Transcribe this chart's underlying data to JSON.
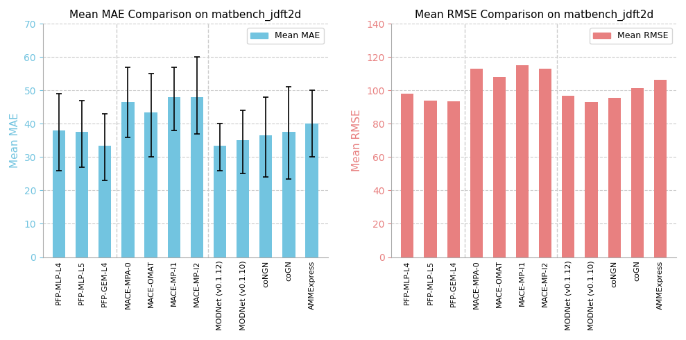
{
  "categories": [
    "PFP-MLP-L4",
    "PFP-MLP-L5",
    "PFP-GEM-L4",
    "MACE-MPA-0",
    "MACE-OMAT",
    "MACE-MP-I1",
    "MACE-MP-I2",
    "MODNet (v0.1.12)",
    "MODNet (v0.1.10)",
    "coNGN",
    "coGN",
    "AMMExpress"
  ],
  "mae_values": [
    38.0,
    37.5,
    33.5,
    46.5,
    43.5,
    48.0,
    48.0,
    33.5,
    35.0,
    36.5,
    37.5,
    40.0
  ],
  "mae_err_lower": [
    12.0,
    10.5,
    10.5,
    10.5,
    13.5,
    10.0,
    11.0,
    7.5,
    10.0,
    12.5,
    14.0,
    10.0
  ],
  "mae_err_upper": [
    11.0,
    9.5,
    9.5,
    10.5,
    11.5,
    9.0,
    12.0,
    6.5,
    9.0,
    11.5,
    13.5,
    10.0
  ],
  "rmse_values": [
    98.0,
    94.0,
    93.5,
    113.0,
    108.0,
    115.0,
    113.0,
    97.0,
    93.0,
    95.5,
    101.5,
    106.5
  ],
  "mae_color": "#72C4E0",
  "rmse_color": "#E88080",
  "mae_title": "Mean MAE Comparison on matbench_jdft2d",
  "rmse_title": "Mean RMSE Comparison on matbench_jdft2d",
  "mae_ylabel": "Mean MAE",
  "rmse_ylabel": "Mean RMSE",
  "mae_ylim": [
    0,
    70
  ],
  "rmse_ylim": [
    0,
    140
  ],
  "mae_yticks": [
    0,
    10,
    20,
    30,
    40,
    50,
    60,
    70
  ],
  "rmse_yticks": [
    0,
    20,
    40,
    60,
    80,
    100,
    120,
    140
  ],
  "group_separators": [
    3,
    7
  ],
  "mae_legend": "Mean MAE",
  "rmse_legend": "Mean RMSE",
  "background_color": "#ffffff",
  "grid_color": "#cccccc",
  "spine_color": "#aaaaaa",
  "title_fontsize": 11,
  "ylabel_fontsize": 11,
  "ytick_fontsize": 10,
  "xtick_fontsize": 8,
  "legend_fontsize": 9,
  "bar_width": 0.55
}
